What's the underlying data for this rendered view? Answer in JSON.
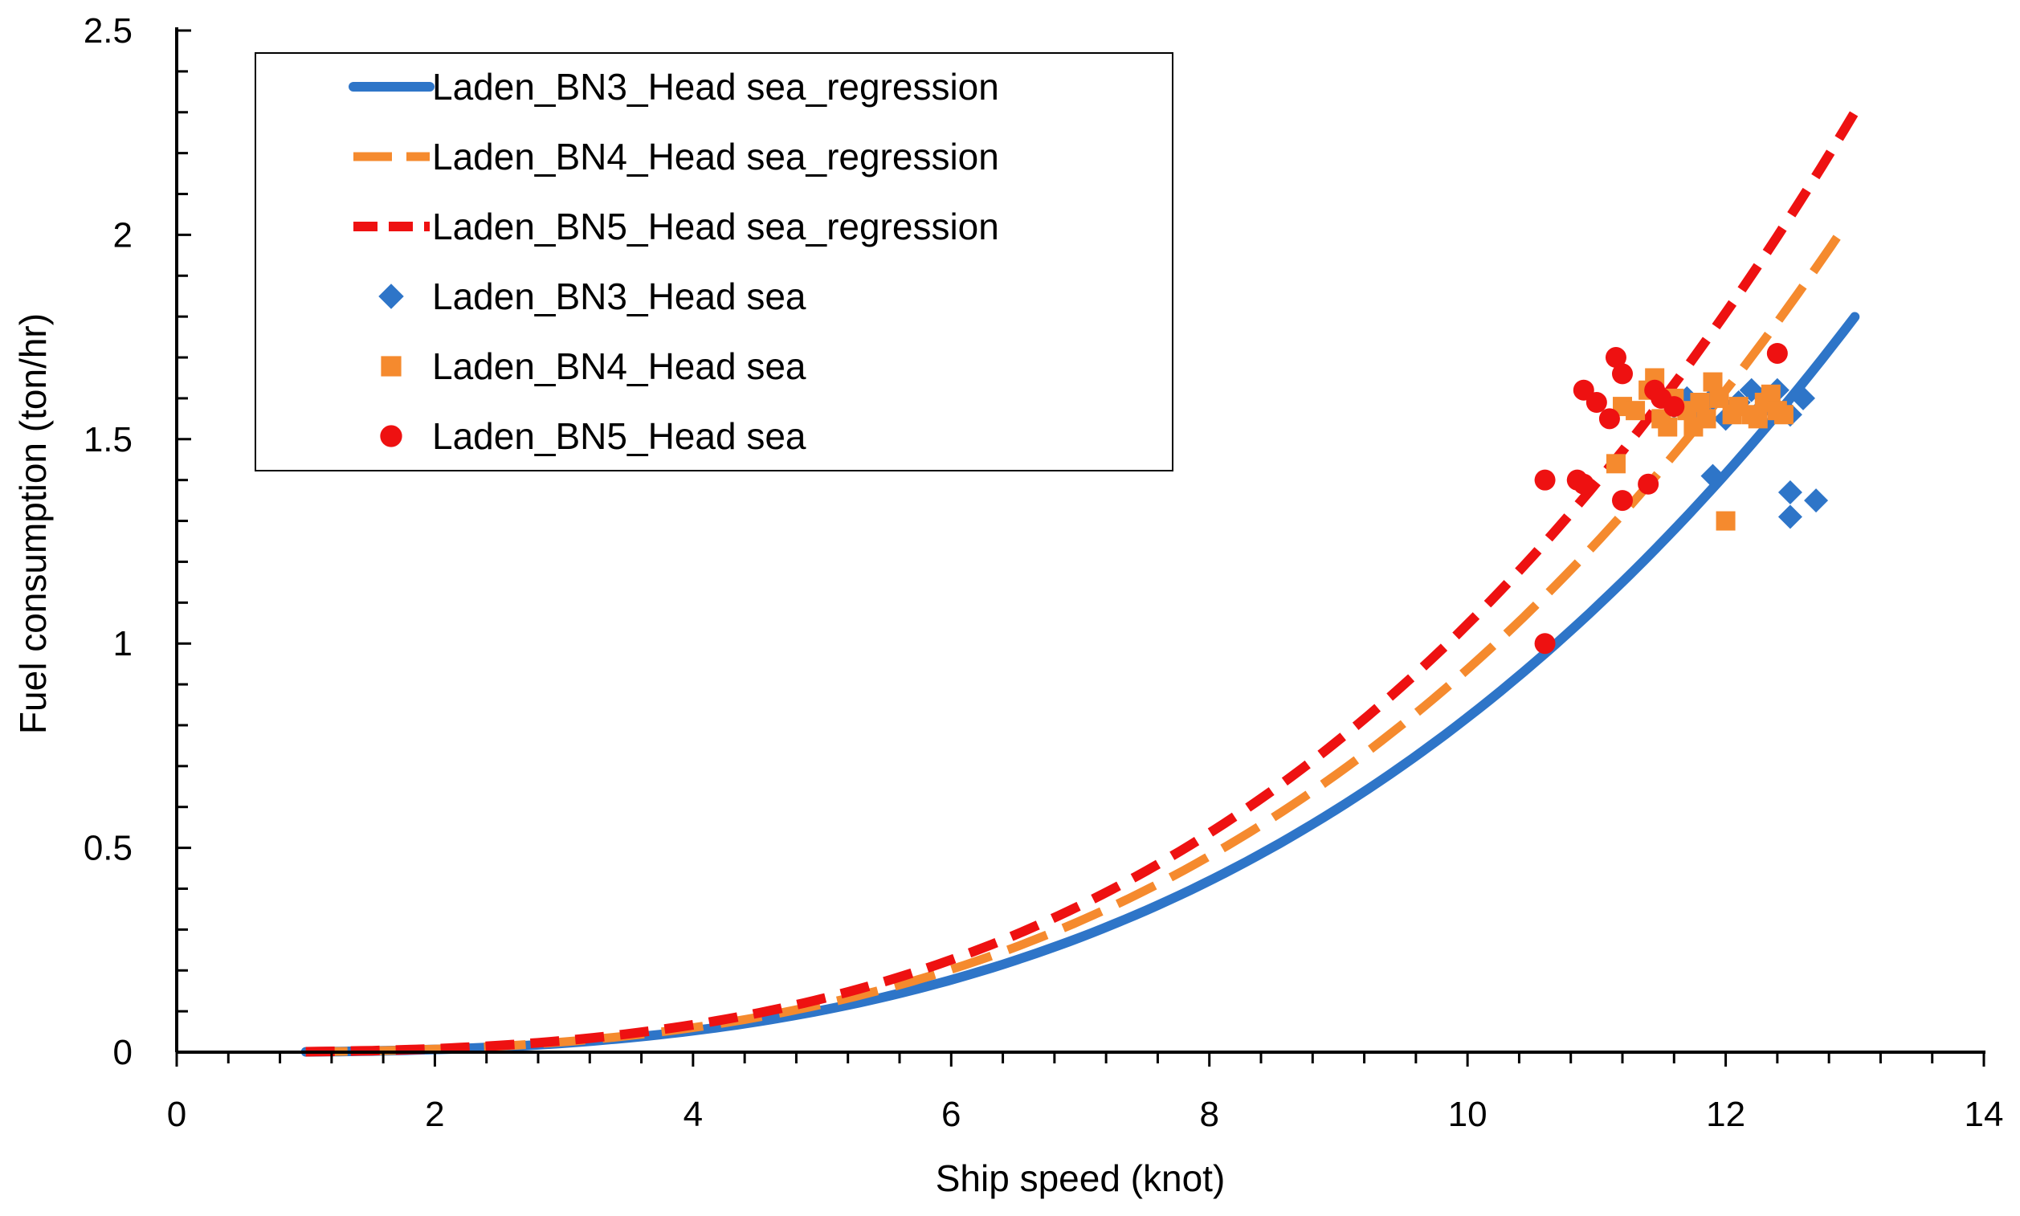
{
  "chart_data": {
    "type": "scatter",
    "title": "",
    "xlabel": "Ship speed (knot)",
    "ylabel": "Fuel consumption (ton/hr)",
    "xlim": [
      0,
      14
    ],
    "ylim": [
      0,
      2.5
    ],
    "x_ticks": [
      "0",
      "2",
      "4",
      "6",
      "8",
      "10",
      "12",
      "14"
    ],
    "y_ticks": [
      "0",
      "0.5",
      "1",
      "1.5",
      "2",
      "2.5"
    ],
    "grid": false,
    "legend_position": "top-left",
    "regressions": [
      {
        "name": "Laden_BN3_Head sea_regression",
        "color": "#2E75C8",
        "style": "solid",
        "coef": 0.000819,
        "exponent": 3.0,
        "x_range": [
          1.0,
          13.0
        ]
      },
      {
        "name": "Laden_BN4_Head sea_regression",
        "color": "#F58A2E",
        "style": "long-dash",
        "coef": 0.000937,
        "exponent": 3.0,
        "x_range": [
          1.0,
          12.9
        ]
      },
      {
        "name": "Laden_BN5_Head sea_regression",
        "color": "#EE1111",
        "style": "dash",
        "coef": 0.001047,
        "exponent": 3.0,
        "x_range": [
          1.0,
          13.0
        ]
      }
    ],
    "series": [
      {
        "name": "Laden_BN3_Head sea",
        "color": "#2E75C8",
        "marker": "diamond",
        "points": [
          [
            11.6,
            1.58
          ],
          [
            11.7,
            1.6
          ],
          [
            11.8,
            1.57
          ],
          [
            11.9,
            1.6
          ],
          [
            11.9,
            1.41
          ],
          [
            12.0,
            1.55
          ],
          [
            12.1,
            1.59
          ],
          [
            12.2,
            1.62
          ],
          [
            12.3,
            1.58
          ],
          [
            12.4,
            1.62
          ],
          [
            12.5,
            1.56
          ],
          [
            12.5,
            1.37
          ],
          [
            12.5,
            1.31
          ],
          [
            12.6,
            1.6
          ],
          [
            12.7,
            1.35
          ]
        ]
      },
      {
        "name": "Laden_BN4_Head sea",
        "color": "#F58A2E",
        "marker": "square",
        "points": [
          [
            11.15,
            1.44
          ],
          [
            11.2,
            1.58
          ],
          [
            11.3,
            1.57
          ],
          [
            11.4,
            1.62
          ],
          [
            11.45,
            1.65
          ],
          [
            11.5,
            1.55
          ],
          [
            11.55,
            1.53
          ],
          [
            11.6,
            1.6
          ],
          [
            11.7,
            1.57
          ],
          [
            11.75,
            1.53
          ],
          [
            11.8,
            1.59
          ],
          [
            11.85,
            1.55
          ],
          [
            11.9,
            1.64
          ],
          [
            11.95,
            1.6
          ],
          [
            12.0,
            1.3
          ],
          [
            12.05,
            1.56
          ],
          [
            12.1,
            1.58
          ],
          [
            12.2,
            1.56
          ],
          [
            12.25,
            1.55
          ],
          [
            12.3,
            1.59
          ],
          [
            12.35,
            1.61
          ],
          [
            12.4,
            1.57
          ],
          [
            12.45,
            1.56
          ]
        ]
      },
      {
        "name": "Laden_BN5_Head sea",
        "color": "#EE1111",
        "marker": "circle",
        "points": [
          [
            10.6,
            1.4
          ],
          [
            10.6,
            1.0
          ],
          [
            10.85,
            1.4
          ],
          [
            10.9,
            1.39
          ],
          [
            10.9,
            1.62
          ],
          [
            11.0,
            1.59
          ],
          [
            11.1,
            1.55
          ],
          [
            11.15,
            1.7
          ],
          [
            11.2,
            1.35
          ],
          [
            11.2,
            1.66
          ],
          [
            11.4,
            1.39
          ],
          [
            11.45,
            1.62
          ],
          [
            11.5,
            1.6
          ],
          [
            11.6,
            1.58
          ],
          [
            12.4,
            1.71
          ]
        ]
      }
    ]
  }
}
